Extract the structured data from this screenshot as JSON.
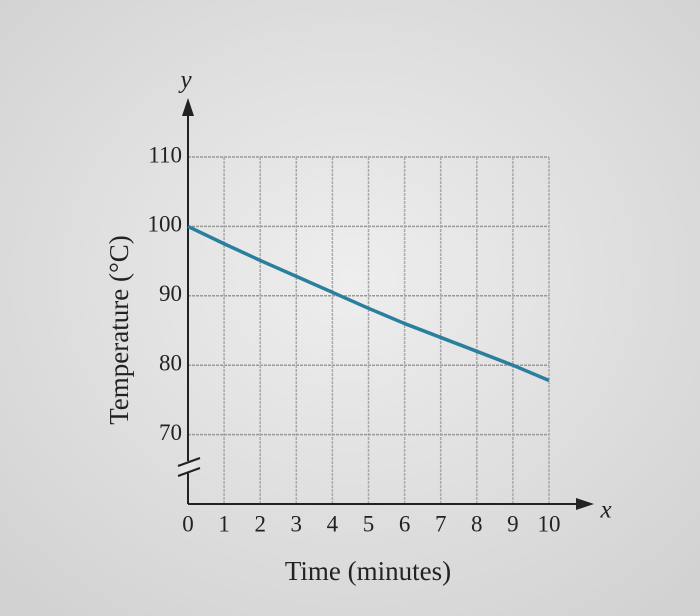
{
  "chart_data": {
    "type": "line",
    "x_label": "Time (minutes)",
    "y_label": "Temperature (°C)",
    "x_axis_name": "x",
    "y_axis_name": "y",
    "x": [
      0,
      1,
      2,
      3,
      4,
      5,
      6,
      7,
      8,
      9,
      10
    ],
    "series": [
      {
        "color": "#2a7f9e",
        "values": [
          100,
          97.5,
          95.1,
          92.8,
          90.5,
          88.2,
          86.0,
          84.0,
          82.0,
          80.0,
          77.8
        ]
      }
    ],
    "xlim": [
      0,
      10
    ],
    "ylim": [
      60,
      110
    ],
    "xticks": [
      0,
      1,
      2,
      3,
      4,
      5,
      6,
      7,
      8,
      9,
      10
    ],
    "yticks": [
      70,
      80,
      90,
      100,
      110
    ],
    "grid": true
  }
}
